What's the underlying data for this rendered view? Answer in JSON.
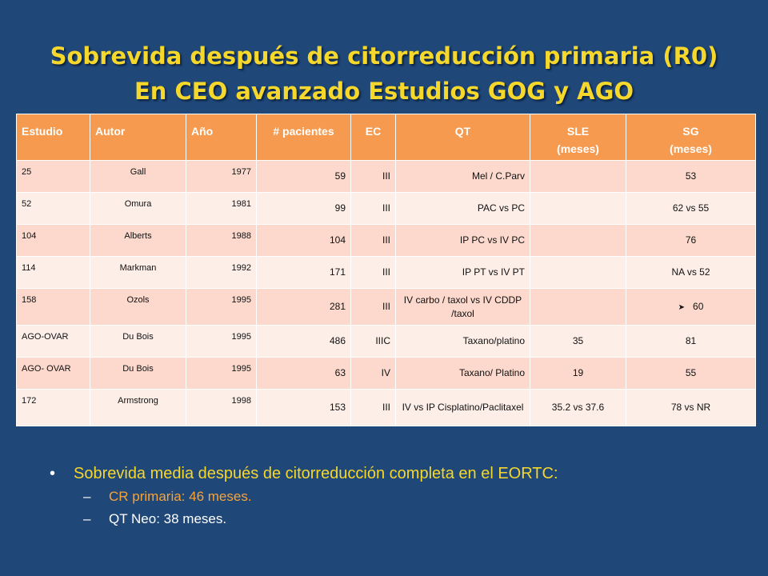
{
  "title": {
    "line1": "Sobrevida después de citorreducción primaria (R0)",
    "line2": "En CEO avanzado Estudios GOG y AGO"
  },
  "table": {
    "headers": [
      "Estudio",
      "Autor",
      "Año",
      "# pacientes",
      "EC",
      "QT",
      "SLE (meses)",
      "SG (meses)"
    ],
    "header_sle_line1": "SLE",
    "header_sle_line2": "(meses)",
    "header_sg_line1": "SG",
    "header_sg_line2": "(meses)",
    "rows": [
      {
        "estudio": "25",
        "autor": "Gall",
        "anio": "1977",
        "pacientes": "59",
        "ec": "III",
        "qt": "Mel / C.Parv",
        "sle": "",
        "sg": "53"
      },
      {
        "estudio": "52",
        "autor": "Omura",
        "anio": "1981",
        "pacientes": "99",
        "ec": "III",
        "qt": "PAC vs PC",
        "sle": "",
        "sg": "62 vs 55"
      },
      {
        "estudio": "104",
        "autor": "Alberts",
        "anio": "1988",
        "pacientes": "104",
        "ec": "III",
        "qt": "IP PC vs IV PC",
        "sle": "",
        "sg": "76"
      },
      {
        "estudio": "114",
        "autor": "Markman",
        "anio": "1992",
        "pacientes": "171",
        "ec": "III",
        "qt": "IP PT vs IV PT",
        "sle": "",
        "sg": "NA vs 52"
      },
      {
        "estudio": "158",
        "autor": "Ozols",
        "anio": "1995",
        "pacientes": "281",
        "ec": "III",
        "qt": "IV carbo / taxol vs IV CDDP /taxol",
        "sle": "",
        "sg": "60"
      },
      {
        "estudio": "AGO-OVAR",
        "autor": "Du Bois",
        "anio": "1995",
        "pacientes": "486",
        "ec": "IIIC",
        "qt": "Taxano/platino",
        "sle": "35",
        "sg": "81"
      },
      {
        "estudio": "AGO- OVAR",
        "autor": "Du Bois",
        "anio": "1995",
        "pacientes": "63",
        "ec": "IV",
        "qt": "Taxano/ Platino",
        "sle": "19",
        "sg": "55"
      },
      {
        "estudio": "172",
        "autor": "Armstrong",
        "anio": "1998",
        "pacientes": "153",
        "ec": "III",
        "qt": "IV vs IP Cisplatino/Paclitaxel",
        "sle": "35.2 vs 37.6",
        "sg": "78 vs NR"
      }
    ]
  },
  "bullets": {
    "main": "Sobrevida media después de citorreducción completa en el EORTC:",
    "sub1": "CR primaria: 46 meses.",
    "sub2": "QT Neo: 38 meses."
  },
  "colors": {
    "background": "#1f4778",
    "title": "#f6d72b",
    "header": "#f59a4e",
    "row_odd": "#fcd9cc",
    "row_even": "#fdeee8",
    "sub1": "#f6a43a"
  },
  "icons": {
    "row5_sg_marker": "arrow-right-icon"
  }
}
